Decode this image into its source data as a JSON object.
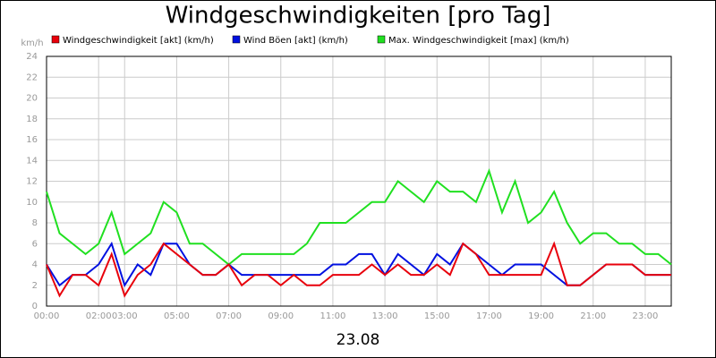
{
  "chart_data": {
    "type": "line",
    "title": "Windgeschwindigkeiten [pro Tag]",
    "x_label": "23.08",
    "y_unit": "km/h",
    "x": [
      0,
      0.5,
      1,
      1.5,
      2,
      2.5,
      3,
      3.5,
      4,
      4.5,
      5,
      5.5,
      6,
      6.5,
      7,
      7.5,
      8,
      8.5,
      9,
      9.5,
      10,
      10.5,
      11,
      11.5,
      12,
      12.5,
      13,
      13.5,
      14,
      14.5,
      15,
      15.5,
      16,
      16.5,
      17,
      17.5,
      18,
      18.5,
      19,
      19.5,
      20,
      20.5,
      21,
      21.5,
      22,
      22.5,
      23,
      23.5,
      24
    ],
    "series": [
      {
        "name": "Windgeschwindigkeit [akt] (km/h)",
        "color": "#e8000b",
        "values": [
          4,
          1,
          3,
          3,
          2,
          5,
          1,
          3,
          4,
          6,
          5,
          4,
          3,
          3,
          4,
          2,
          3,
          3,
          2,
          3,
          2,
          2,
          3,
          3,
          3,
          4,
          3,
          4,
          3,
          3,
          4,
          3,
          6,
          5,
          3,
          3,
          3,
          3,
          3,
          6,
          2,
          2,
          3,
          4,
          4,
          4,
          3,
          3,
          3
        ]
      },
      {
        "name": "Wind Böen [akt] (km/h)",
        "color": "#0010e0",
        "values": [
          4,
          2,
          3,
          3,
          4,
          6,
          2,
          4,
          3,
          6,
          6,
          4,
          3,
          3,
          4,
          3,
          3,
          3,
          3,
          3,
          3,
          3,
          4,
          4,
          5,
          5,
          3,
          5,
          4,
          3,
          5,
          4,
          6,
          5,
          4,
          3,
          4,
          4,
          4,
          3,
          2,
          2,
          3,
          4,
          4,
          4,
          3,
          3,
          3
        ]
      },
      {
        "name": "Max. Windgeschwindigkeit [max] (km/h)",
        "color": "#20e020",
        "values": [
          11,
          7,
          6,
          5,
          6,
          9,
          5,
          6,
          7,
          10,
          9,
          6,
          6,
          5,
          4,
          5,
          5,
          5,
          5,
          5,
          6,
          8,
          8,
          8,
          9,
          10,
          10,
          12,
          11,
          10,
          12,
          11,
          11,
          10,
          13,
          9,
          12,
          8,
          9,
          11,
          8,
          6,
          7,
          7,
          6,
          6,
          5,
          5,
          4
        ]
      }
    ],
    "xlim": [
      0,
      24
    ],
    "xticks": [
      {
        "value": 0,
        "label": "00:00"
      },
      {
        "value": 2,
        "label": "02:00"
      },
      {
        "value": 3,
        "label": "03:00"
      },
      {
        "value": 5,
        "label": "05:00"
      },
      {
        "value": 7,
        "label": "07:00"
      },
      {
        "value": 9,
        "label": "09:00"
      },
      {
        "value": 11,
        "label": "11:00"
      },
      {
        "value": 13,
        "label": "13:00"
      },
      {
        "value": 15,
        "label": "15:00"
      },
      {
        "value": 17,
        "label": "17:00"
      },
      {
        "value": 19,
        "label": "19:00"
      },
      {
        "value": 21,
        "label": "21:00"
      },
      {
        "value": 23,
        "label": "23:00"
      }
    ],
    "ylim": [
      0,
      24
    ],
    "yticks": [
      0,
      2,
      4,
      6,
      8,
      10,
      12,
      14,
      16,
      18,
      20,
      22,
      24
    ],
    "grid": true
  }
}
